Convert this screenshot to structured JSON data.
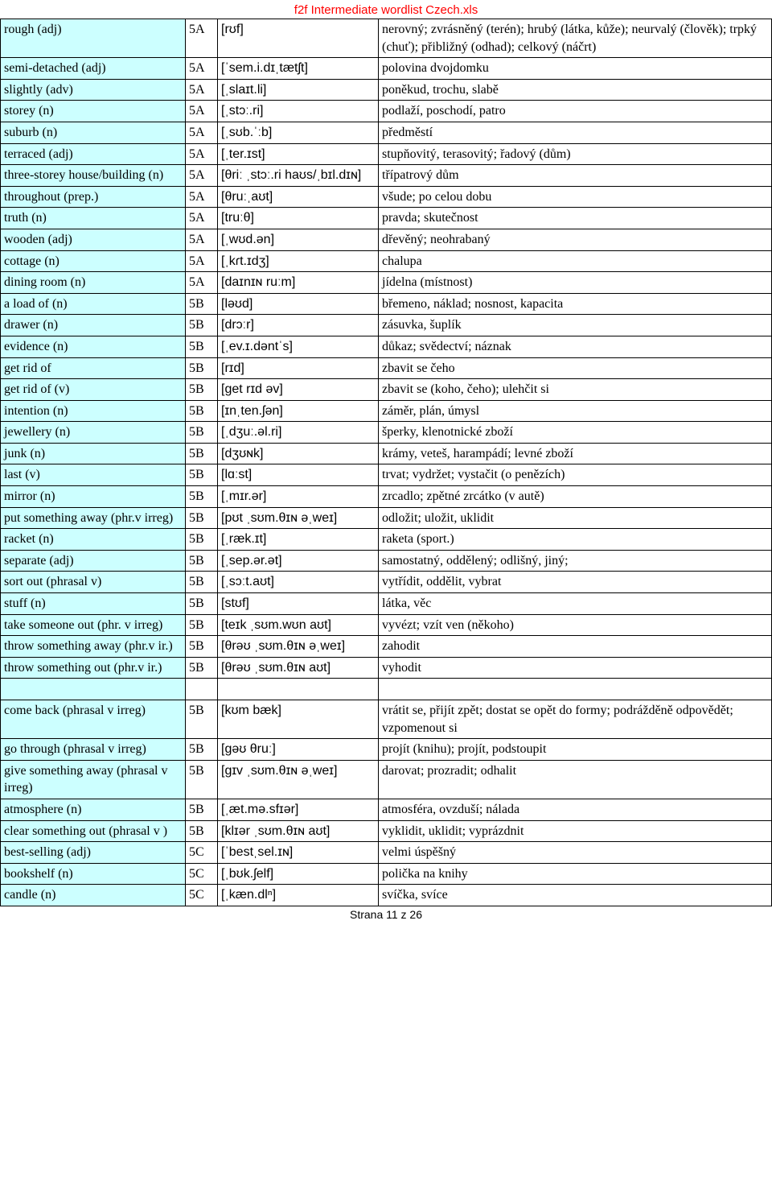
{
  "header": {
    "title": "f2f Intermediate wordlist Czech.xls"
  },
  "footer": {
    "text": "Strana 11 z 26"
  },
  "colors": {
    "term_bg": "#ccffff",
    "title_color": "#ff0000",
    "border": "#000000",
    "page_bg": "#ffffff"
  },
  "columns": [
    "term",
    "level",
    "ipa",
    "definition"
  ],
  "rows": [
    {
      "term": "rough   (adj)",
      "level": "5A",
      "ipa": "[rʊf]",
      "def": "nerovný; zvrásněný (terén); hrubý (látka, kůže); neurvalý (člověk); trpký (chuť); přibližný (odhad); celkový (náčrt)"
    },
    {
      "term": "semi-detached   (adj)",
      "level": "5A",
      "ipa": "[ˈsem.i.dɪˌtætʃt]",
      "def": "polovina dvojdomku"
    },
    {
      "term": "slightly (adv)",
      "level": "5A",
      "ipa": "[ˌslaɪt.li]",
      "def": "poněkud, trochu, slabě"
    },
    {
      "term": "storey   (n)",
      "level": "5A",
      "ipa": "[ˌstɔː.ri]",
      "def": "podlaží, poschodí, patro"
    },
    {
      "term": "suburb   (n)",
      "level": "5A",
      "ipa": "[ˌsʊb.ˈːb]",
      "def": "předměstí"
    },
    {
      "term": "terraced   (adj)",
      "level": "5A",
      "ipa": "[ˌter.ɪst]",
      "def": "stupňovitý, terasovitý; řadový (dům)"
    },
    {
      "term": "three-storey house/building (n)",
      "level": "5A",
      "ipa": "[θriː ˌstɔː.ri haʊs/ˌbɪl.dɪɴ]",
      "def": "třípatrový dům"
    },
    {
      "term": "throughout   (prep.)",
      "level": "5A",
      "ipa": "[θruːˌaʊt]",
      "def": "všude; po celou dobu"
    },
    {
      "term": "truth   (n)",
      "level": "5A",
      "ipa": "[truːθ]",
      "def": "pravda; skutečnost"
    },
    {
      "term": "wooden   (adj)",
      "level": "5A",
      "ipa": "[ˌwʊd.ən]",
      "def": "dřevěný; neohrabaný"
    },
    {
      "term": "cottage (n)",
      "level": "5A",
      "ipa": "[ˌkɾt.ɪdʒ]",
      "def": "chalupa"
    },
    {
      "term": "dining room (n)",
      "level": "5A",
      "ipa": "[daɪnɪɴ ruːm]",
      "def": "jídelna (místnost)"
    },
    {
      "term": "a load of (n)",
      "level": "5B",
      "ipa": "[ləʊd]",
      "def": "břemeno, náklad; nosnost, kapacita"
    },
    {
      "term": "drawer   (n)",
      "level": "5B",
      "ipa": "[drɔːr]",
      "def": "zásuvka, šuplík"
    },
    {
      "term": "evidence   (n)",
      "level": "5B",
      "ipa": "[ˌev.ɪ.dəntˈs]",
      "def": "důkaz; svědectví; náznak"
    },
    {
      "term": "get rid of",
      "level": "5B",
      "ipa": "[rɪd]",
      "def": "zbavit se čeho"
    },
    {
      "term": "get rid of (v)",
      "level": "5B",
      "ipa": "[get rɪd əv]",
      "def": "zbavit se (koho, čeho); ulehčit si"
    },
    {
      "term": "intention   (n)",
      "level": "5B",
      "ipa": "[ɪnˌten.ʃən]",
      "def": "záměr, plán, úmysl"
    },
    {
      "term": "jewellery   (n)",
      "level": "5B",
      "ipa": "[ˌdʒuː.əl.ri]",
      "def": "šperky, klenotnické zboží"
    },
    {
      "term": "junk   (n)",
      "level": "5B",
      "ipa": "[dʒʊɴk]",
      "def": "krámy, veteš, harampádí; levné zboží"
    },
    {
      "term": "last   (v)",
      "level": "5B",
      "ipa": "[lɑːst]",
      "def": "trvat; vydržet; vystačit (o penězích)"
    },
    {
      "term": "mirror   (n)",
      "level": "5B",
      "ipa": "[ˌmɪr.ər]",
      "def": "zrcadlo; zpětné zrcátko (v autě)"
    },
    {
      "term": "put something away (phr.v   irreg)",
      "level": "5B",
      "ipa": "[pʊt ˌsʊm.θɪɴ əˌweɪ]",
      "def": "odložit; uložit, uklidit"
    },
    {
      "term": "racket   (n)",
      "level": "5B",
      "ipa": "[ˌræk.ɪt]",
      "def": "raketa (sport.)"
    },
    {
      "term": "separate (adj)",
      "level": "5B",
      "ipa": "[ˌsep.ər.ət]",
      "def": "samostatný, oddělený; odlišný, jiný;"
    },
    {
      "term": "sort out   (phrasal   v)",
      "level": "5B",
      "ipa": "[ˌsɔːt.aʊt]",
      "def": "vytřídit, oddělit, vybrat"
    },
    {
      "term": "stuff   (n)",
      "level": "5B",
      "ipa": "[stʊf]",
      "def": "látka, věc"
    },
    {
      "term": "take someone out (phr.  v   irreg)",
      "level": "5B",
      "ipa": "[teɪk ˌsʊm.wʊn aʊt]",
      "def": "vyvézt; vzít ven (někoho)"
    },
    {
      "term": "throw something away (phr.v ir.)",
      "level": "5B",
      "ipa": "[θrəʊ ˌsʊm.θɪɴ əˌweɪ]",
      "def": "zahodit"
    },
    {
      "term": "throw something out (phr.v ir.)",
      "level": "5B",
      "ipa": "[θrəʊ ˌsʊm.θɪɴ aʊt]",
      "def": "vyhodit"
    },
    {
      "gap": true
    },
    {
      "term": "come back (phrasal v irreg)",
      "level": "5B",
      "ipa": "[kʊm bæk]",
      "def": "vrátit se, přijít zpět; dostat se opět do formy; podrážděně odpovědět; vzpomenout si"
    },
    {
      "term": "go through  (phrasal v irreg)",
      "level": "5B",
      "ipa": "[gəʊ θruː]",
      "def": "projít (knihu); projít, podstoupit"
    },
    {
      "term": "give something away (phrasal v  irreg)",
      "level": "5B",
      "ipa": "[gɪv ˌsʊm.θɪɴ əˌweɪ]",
      "def": "darovat; prozradit; odhalit"
    },
    {
      "term": "atmosphere (n)",
      "level": "5B",
      "ipa": "[ˌæt.mə.sfɪər]",
      "def": "atmosféra, ovzduší; nálada"
    },
    {
      "term": "clear something out (phrasal v )",
      "level": "5B",
      "ipa": "[klɪər ˌsʊm.θɪɴ aʊt]",
      "def": "vyklidit, uklidit; vyprázdnit"
    },
    {
      "term": "best-selling   (adj)",
      "level": "5C",
      "ipa": "[ˈbestˌsel.ɪɴ]",
      "def": "velmi úspěšný"
    },
    {
      "term": "bookshelf   (n)",
      "level": "5C",
      "ipa": "[ˌbʊk.ʃelf]",
      "def": "polička na knihy"
    },
    {
      "term": "candle   (n)",
      "level": "5C",
      "ipa": "[ˌkæn.dlⁿ]",
      "def": "svíčka, svíce"
    }
  ]
}
